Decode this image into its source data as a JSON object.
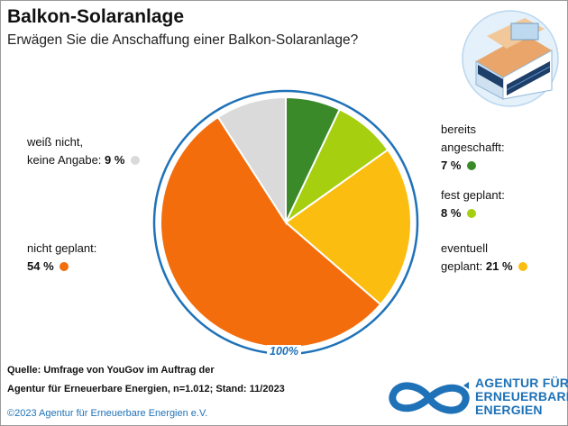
{
  "title": "Balkon-Solaranlage",
  "subtitle": "Erwägen Sie die Anschaffung einer Balkon-Solaranlage?",
  "chart_data": {
    "type": "pie",
    "total_label": "100%",
    "slices": [
      {
        "label_lines": [
          "bereits",
          "angeschafft:"
        ],
        "value": 7,
        "value_label": "7 %",
        "color": "#3b8a2a"
      },
      {
        "label_lines": [
          "fest geplant:"
        ],
        "value": 8,
        "value_label": "8 %",
        "color": "#a6cf10"
      },
      {
        "label_lines": [
          "eventuell",
          "geplant:"
        ],
        "value": 21,
        "value_label": "21 %",
        "color": "#fbbd0f"
      },
      {
        "label_lines": [
          "nicht geplant:"
        ],
        "value": 54,
        "value_label": "54 %",
        "color": "#f36d0c"
      },
      {
        "label_lines": [
          "weiß nicht,",
          "keine Angabe:"
        ],
        "value": 9,
        "value_label": "9 %",
        "color": "#dadada"
      }
    ]
  },
  "source": {
    "line1": "Quelle: Umfrage von YouGov im Auftrag der",
    "line2": "Agentur für Erneuerbare Energien, n=1.012; Stand: 11/2023"
  },
  "copyright": "©2023 Agentur für Erneuerbare Energien e.V.",
  "logo": {
    "line1": "AGENTUR FÜR",
    "line2": "ERNEUERBARE",
    "line3": "ENERGIEN"
  },
  "colors": {
    "accent": "#1f72b8"
  }
}
